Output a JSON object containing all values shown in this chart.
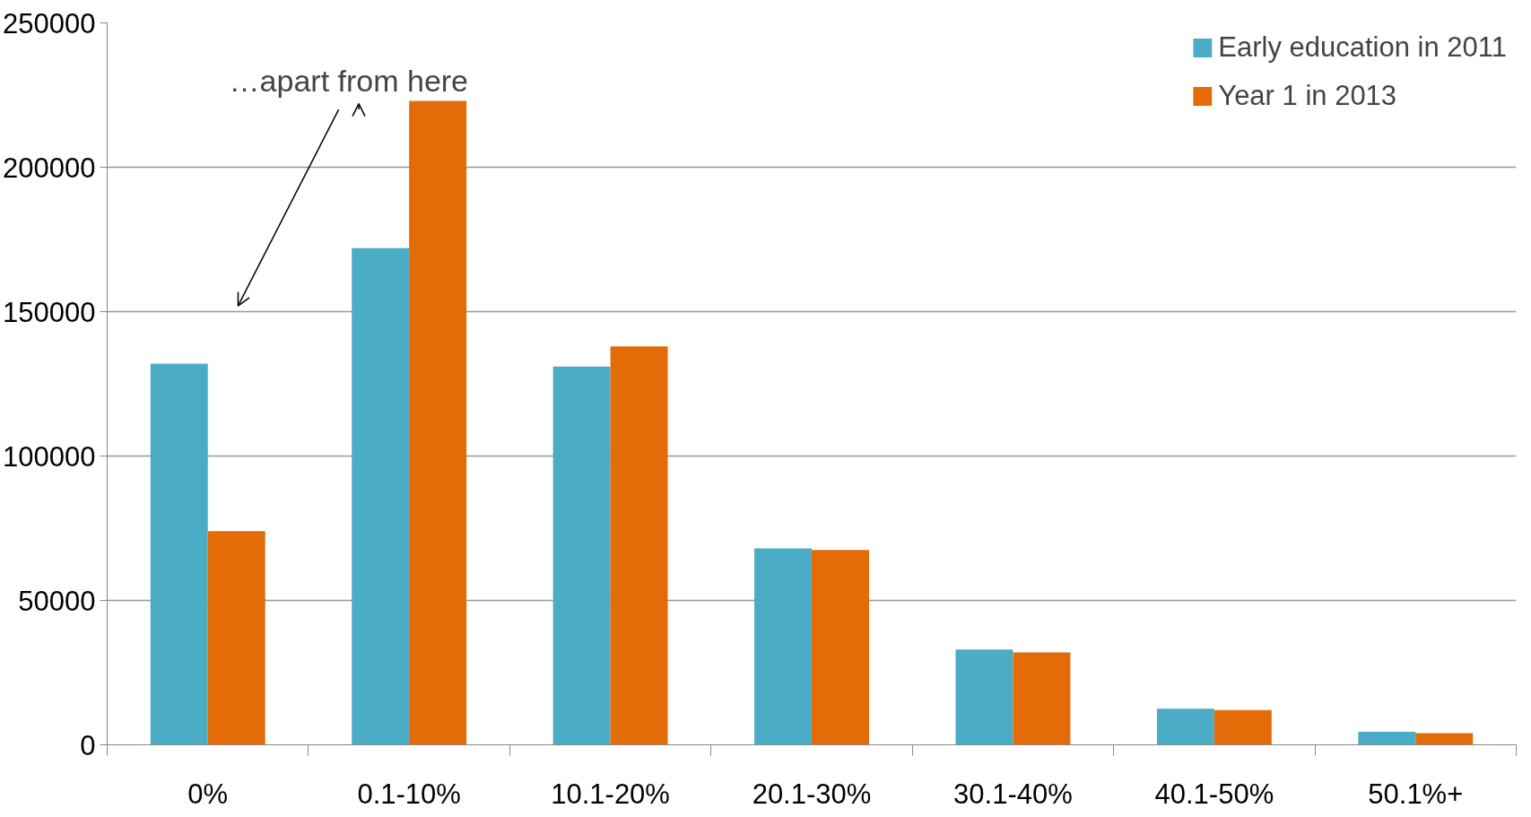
{
  "chart_data": {
    "type": "bar",
    "categories": [
      "0%",
      "0.1-10%",
      "10.1-20%",
      "20.1-30%",
      "30.1-40%",
      "40.1-50%",
      "50.1%+"
    ],
    "series": [
      {
        "name": "Early education in 2011",
        "color": "#4bacc6",
        "values": [
          132000,
          172000,
          131000,
          68000,
          33000,
          12500,
          4500
        ]
      },
      {
        "name": "Year 1 in 2013",
        "color": "#e36c09",
        "values": [
          74000,
          223000,
          138000,
          67500,
          32000,
          12000,
          4000
        ]
      }
    ],
    "ylim": [
      0,
      250000
    ],
    "yticks": [
      0,
      50000,
      100000,
      150000,
      200000,
      250000
    ],
    "grid": "y",
    "legend": "top right",
    "annotations": [
      "…apart from here"
    ]
  }
}
